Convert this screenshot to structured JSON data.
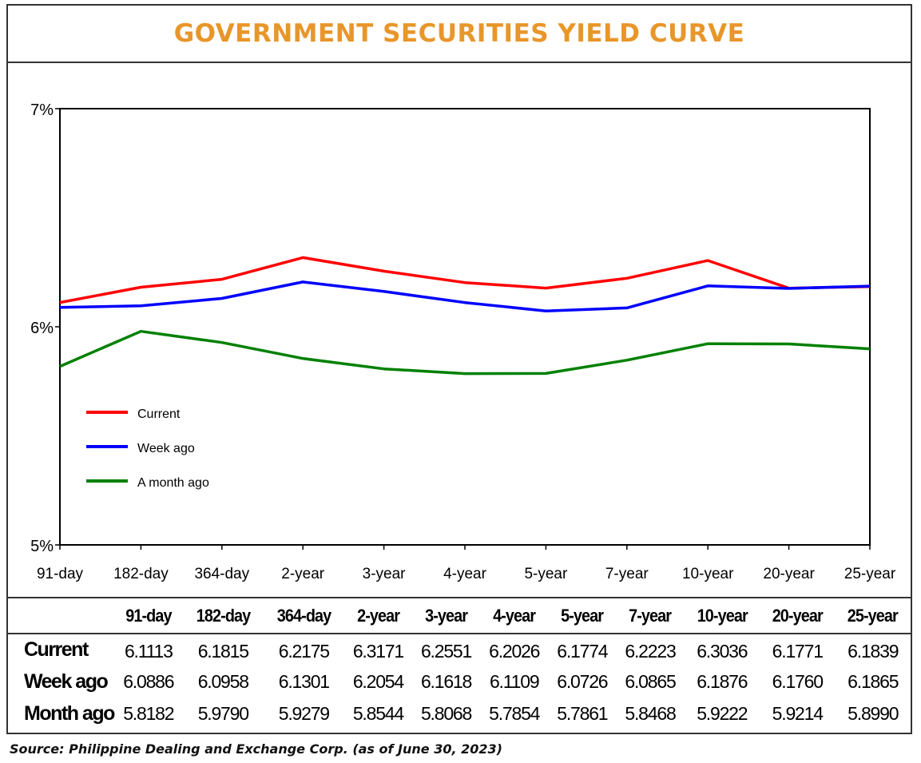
{
  "title": "GOVERNMENT SECURITIES YIELD CURVE",
  "source": "Source: Philippine Dealing and Exchange Corp. (as of June 30, 2023)",
  "chart_data": {
    "type": "line",
    "categories": [
      "91-day",
      "182-day",
      "364-day",
      "2-year",
      "3-year",
      "4-year",
      "5-year",
      "7-year",
      "10-year",
      "20-year",
      "25-year"
    ],
    "ylim": [
      5,
      7
    ],
    "yticks": [
      5,
      6,
      7
    ],
    "ytick_labels": [
      "5%",
      "6%",
      "7%"
    ],
    "grid": false,
    "legend_position": "lower-left",
    "series": [
      {
        "name": "Current",
        "color": "#ff0000",
        "values": [
          6.1113,
          6.1815,
          6.2175,
          6.3171,
          6.2551,
          6.2026,
          6.1774,
          6.2223,
          6.3036,
          6.1771,
          6.1839
        ]
      },
      {
        "name": "Week ago",
        "color": "#0000ff",
        "values": [
          6.0886,
          6.0958,
          6.1301,
          6.2054,
          6.1618,
          6.1109,
          6.0726,
          6.0865,
          6.1876,
          6.176,
          6.1865
        ]
      },
      {
        "name": "A month ago",
        "color": "#008000",
        "values": [
          5.8182,
          5.979,
          5.9279,
          5.8544,
          5.8068,
          5.7854,
          5.7861,
          5.8468,
          5.9222,
          5.9214,
          5.899
        ]
      }
    ]
  },
  "table": {
    "corner": "",
    "columns": [
      "91-day",
      "182-day",
      "364-day",
      "2-year",
      "3-year",
      "4-year",
      "5-year",
      "7-year",
      "10-year",
      "20-year",
      "25-year"
    ],
    "rows": [
      {
        "label": "Current",
        "values": [
          "6.1113",
          "6.1815",
          "6.2175",
          "6.3171",
          "6.2551",
          "6.2026",
          "6.1774",
          "6.2223",
          "6.3036",
          "6.1771",
          "6.1839"
        ]
      },
      {
        "label": "Week ago",
        "values": [
          "6.0886",
          "6.0958",
          "6.1301",
          "6.2054",
          "6.1618",
          "6.1109",
          "6.0726",
          "6.0865",
          "6.1876",
          "6.1760",
          "6.1865"
        ]
      },
      {
        "label": "Month ago",
        "values": [
          "5.8182",
          "5.9790",
          "5.9279",
          "5.8544",
          "5.8068",
          "5.7854",
          "5.7861",
          "5.8468",
          "5.9222",
          "5.9214",
          "5.8990"
        ]
      }
    ]
  }
}
